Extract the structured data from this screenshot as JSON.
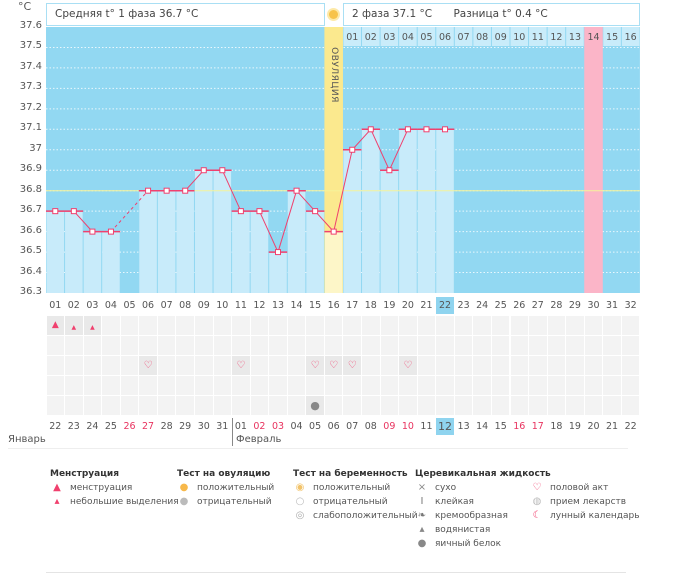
{
  "header": {
    "unit": "°C",
    "phase1_avg": "Средняя t° 1 фаза 36.7 °C",
    "phase2_avg": "2 фаза 37.1 °C",
    "difference": "Разница t° 0.4 °C",
    "ovulation_label": "ОВУЛЯЦИЯ"
  },
  "chart_data": {
    "type": "bar",
    "ylim": [
      36.3,
      37.6
    ],
    "yticks": [
      "37.6",
      "37.5",
      "37.4",
      "37.3",
      "37.2",
      "37.1",
      "37",
      "36.9",
      "36.8",
      "36.7",
      "36.6",
      "36.5",
      "36.4",
      "36.3"
    ],
    "categories": [
      "01",
      "02",
      "03",
      "04",
      "05",
      "06",
      "07",
      "08",
      "09",
      "10",
      "11",
      "12",
      "13",
      "14",
      "15",
      "16",
      "17",
      "18",
      "19",
      "20",
      "21",
      "22",
      "23",
      "24",
      "25",
      "26",
      "27",
      "28",
      "29",
      "30",
      "31",
      "32"
    ],
    "values": [
      36.7,
      36.7,
      36.6,
      36.6,
      null,
      36.8,
      36.8,
      36.8,
      36.9,
      36.9,
      36.7,
      36.7,
      36.5,
      36.8,
      36.7,
      36.6,
      37.0,
      37.1,
      36.9,
      37.1,
      37.1,
      37.1,
      null,
      null,
      null,
      null,
      null,
      null,
      null,
      null,
      null,
      null
    ],
    "coverline": 36.8,
    "ovulation_day": 16,
    "today_day": 22,
    "highlight_day": 30,
    "phase2_days": [
      "01",
      "02",
      "03",
      "04",
      "05",
      "06",
      "07",
      "08",
      "09",
      "10",
      "11",
      "12",
      "13",
      "14",
      "15",
      "16"
    ],
    "grid": true
  },
  "calendar": {
    "dates": [
      "22",
      "23",
      "24",
      "25",
      "26",
      "27",
      "28",
      "29",
      "30",
      "31",
      "01",
      "02",
      "03",
      "04",
      "05",
      "06",
      "07",
      "08",
      "09",
      "10",
      "11",
      "12",
      "13",
      "14",
      "15",
      "16",
      "17",
      "18",
      "19",
      "20",
      "21",
      "22"
    ],
    "weekend_idx": [
      4,
      5,
      11,
      12,
      18,
      19,
      25,
      26
    ],
    "months": [
      "Январь",
      "Февраль"
    ]
  },
  "marks": {
    "menstruation": [
      1
    ],
    "light_spotting": [
      2,
      3
    ],
    "intercourse": [
      6,
      11,
      15,
      16,
      17,
      20
    ],
    "egg_white": [
      15
    ]
  },
  "colors": {
    "bg": "#92d8f2",
    "bar": "#c8ebfa",
    "line": "#f0406e",
    "ovulation": "#fbe98e",
    "highlight": "#fbb5c8",
    "coverline": "#f6f39a"
  },
  "legend": [
    {
      "title": "Менструация",
      "items": [
        {
          "icon": "drop-large-icon",
          "label": "менструация"
        },
        {
          "icon": "drop-small-icon",
          "label": "небольшие выделения"
        }
      ]
    },
    {
      "title": "Тест на овуляцию",
      "items": [
        {
          "icon": "sun-positive-icon",
          "label": "положительный"
        },
        {
          "icon": "sun-negative-icon",
          "label": "отрицательный"
        }
      ]
    },
    {
      "title": "Тест на беременность",
      "items": [
        {
          "icon": "test-positive-icon",
          "label": "положительный"
        },
        {
          "icon": "test-negative-icon",
          "label": "отрицательный"
        },
        {
          "icon": "test-weak-icon",
          "label": "слабоположительный"
        }
      ]
    },
    {
      "title": "Церевикальная жидкость",
      "items": [
        {
          "icon": "cross-icon",
          "label": "сухо"
        },
        {
          "icon": "sticky-icon",
          "label": "клейкая"
        },
        {
          "icon": "creamy-icon",
          "label": "кремообразная"
        },
        {
          "icon": "watery-icon",
          "label": "водянистая"
        },
        {
          "icon": "egg-white-icon",
          "label": "яичный белок"
        }
      ]
    },
    {
      "title": "",
      "items": [
        {
          "icon": "heart-icon",
          "label": "половой акт"
        },
        {
          "icon": "pill-icon",
          "label": "прием лекарств"
        },
        {
          "icon": "moon-icon",
          "label": "лунный календарь"
        }
      ]
    }
  ]
}
